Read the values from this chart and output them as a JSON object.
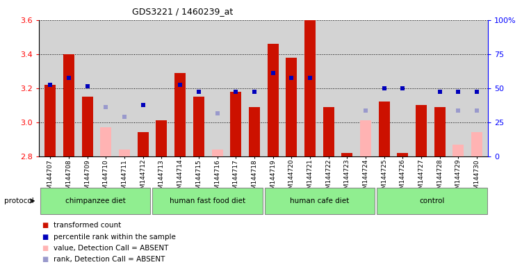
{
  "title": "GDS3221 / 1460239_at",
  "samples": [
    "GSM144707",
    "GSM144708",
    "GSM144709",
    "GSM144710",
    "GSM144711",
    "GSM144712",
    "GSM144713",
    "GSM144714",
    "GSM144715",
    "GSM144716",
    "GSM144717",
    "GSM144718",
    "GSM144719",
    "GSM144720",
    "GSM144721",
    "GSM144722",
    "GSM144723",
    "GSM144724",
    "GSM144725",
    "GSM144726",
    "GSM144727",
    "GSM144728",
    "GSM144729",
    "GSM144730"
  ],
  "red_values": [
    3.22,
    3.4,
    3.15,
    null,
    null,
    2.94,
    3.01,
    3.29,
    3.15,
    null,
    3.18,
    3.09,
    3.46,
    3.38,
    3.6,
    3.09,
    2.82,
    null,
    3.12,
    2.82,
    3.1,
    3.09,
    2.87,
    null
  ],
  "pink_values": [
    null,
    null,
    null,
    2.97,
    2.84,
    null,
    null,
    null,
    null,
    2.84,
    null,
    null,
    null,
    null,
    null,
    null,
    null,
    3.01,
    null,
    null,
    null,
    null,
    2.87,
    2.94
  ],
  "blue_y": [
    3.22,
    3.26,
    3.21,
    null,
    null,
    3.1,
    null,
    3.22,
    3.18,
    null,
    3.18,
    3.18,
    3.29,
    3.26,
    3.26,
    null,
    null,
    null,
    3.2,
    3.2,
    null,
    3.18,
    3.18,
    3.18
  ],
  "lightblue_y": [
    null,
    null,
    null,
    3.09,
    3.03,
    null,
    null,
    null,
    null,
    3.05,
    null,
    null,
    null,
    null,
    null,
    null,
    null,
    3.07,
    null,
    null,
    null,
    null,
    3.07,
    3.07
  ],
  "groups": [
    {
      "label": "chimpanzee diet",
      "start": 0,
      "end": 6
    },
    {
      "label": "human fast food diet",
      "start": 6,
      "end": 12
    },
    {
      "label": "human cafe diet",
      "start": 12,
      "end": 18
    },
    {
      "label": "control",
      "start": 18,
      "end": 24
    }
  ],
  "ymin": 2.8,
  "ymax": 3.6,
  "yticks": [
    2.8,
    3.0,
    3.2,
    3.4,
    3.6
  ],
  "right_yticks": [
    0,
    25,
    50,
    75,
    100
  ],
  "bg_color": "#d3d3d3",
  "plot_bg": "#d0d0d0",
  "bar_color_red": "#cc1100",
  "bar_color_pink": "#ffb3b3",
  "dot_color_blue": "#0000bb",
  "dot_color_lightblue": "#9999cc",
  "group_bg": "#90ee90",
  "group_border": "#888888"
}
